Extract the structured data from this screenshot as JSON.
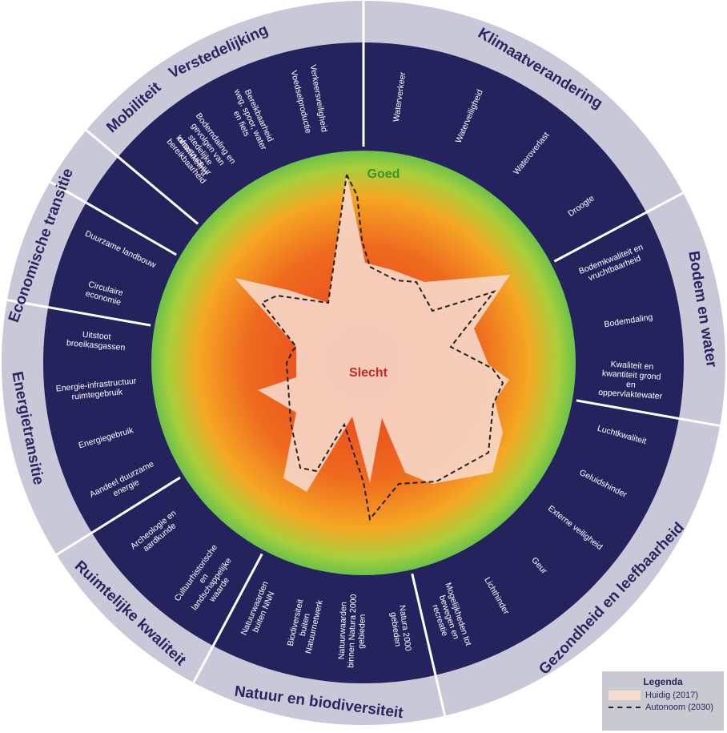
{
  "colors": {
    "outer_ring": "#c8c8d8",
    "indicator_band": "#25235e",
    "good": "#6cc24a",
    "bad": "#d8421c",
    "current_fill": "#f6d6c6",
    "autonomous_line": "#222222"
  },
  "center": {
    "good_label": "Goed",
    "bad_label": "Slecht"
  },
  "themes": [
    {
      "name": "Verstedelijking",
      "indicators": [
        "Bodemdaling en gevolgen van stedelijke ontwikkeling",
        "Voedselproductie"
      ]
    },
    {
      "name": "Klimaatverandering",
      "indicators": [
        "Waterverkeer",
        "Waterveiligheid",
        "Wateroverlast",
        "Droogte"
      ]
    },
    {
      "name": "Bodem en water",
      "indicators": [
        "Bodemkwaliteit en vruchtbaarheid",
        "Bodemdaling",
        "Kwaliteit en kwantiteit grond en oppervlaktewater"
      ]
    },
    {
      "name": "Gezondheid en leefbaarheid",
      "indicators": [
        "Luchtkwaliteit",
        "Geluidshinder",
        "Externe veiligheid",
        "Geur",
        "Lichthinder",
        "Mogelijkheden tot bewegen en recreatie"
      ]
    },
    {
      "name": "Natuur en biodiversiteit",
      "indicators": [
        "Natura 2000 gebieden",
        "Natuurwaarden binnen Natura 2000 gebieden",
        "Biodiversiteit buiten Natuurnetwerk",
        "Natuurwaarden buiten NNN"
      ]
    },
    {
      "name": "Ruimtelijke kwaliteit",
      "indicators": [
        "Cultuurhistorische en landschappelijke waarde",
        "Archeologie en aardkunde"
      ]
    },
    {
      "name": "Energietransitie",
      "indicators": [
        "Aandeel duurzame energie",
        "Energiegebruik",
        "Energie-infrastructuur ruimtegebruik",
        "Uitstoot broeikasgassen"
      ]
    },
    {
      "name": "Economische transitie",
      "indicators": [
        "Circulaire economie",
        "Duurzame landbouw"
      ]
    },
    {
      "name": "Mobiliteit",
      "indicators": [
        "Infrastructuur bereikbaarheid",
        "Bereikbaarheid weg, spoor, water en fiets",
        "Verkeersveiligheid"
      ]
    }
  ],
  "legend": {
    "title": "Legenda",
    "current_label": "Huidig (2017)",
    "autonomous_label": "Autonoom (2030)"
  }
}
